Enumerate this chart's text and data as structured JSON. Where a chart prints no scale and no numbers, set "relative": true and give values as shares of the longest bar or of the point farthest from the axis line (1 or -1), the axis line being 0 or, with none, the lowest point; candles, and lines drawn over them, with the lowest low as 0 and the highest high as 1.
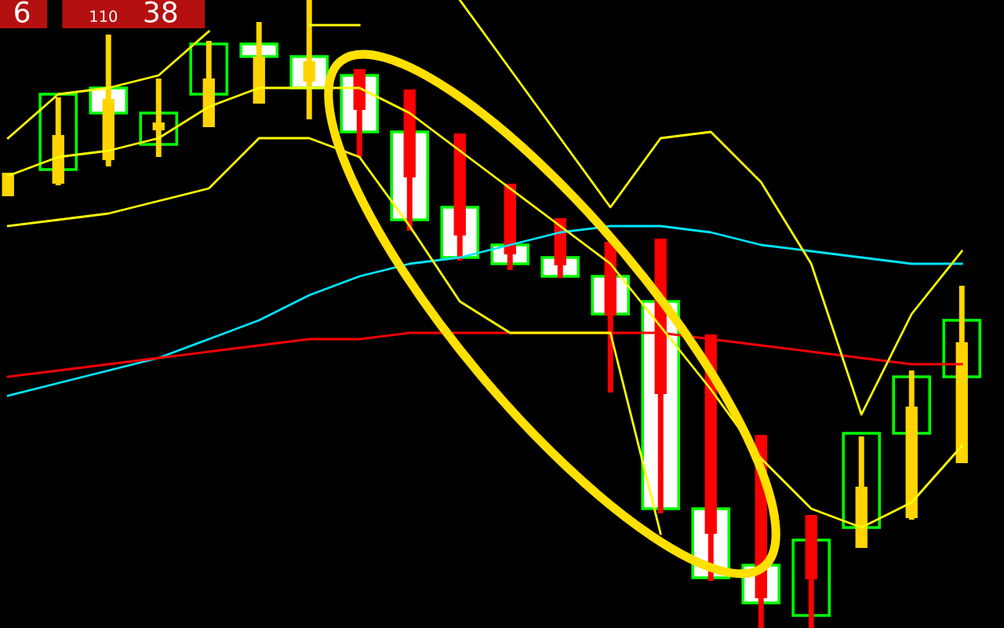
{
  "chart_data": {
    "type": "candlestick",
    "relative": true,
    "annotations": [
      "6",
      "110",
      "38"
    ],
    "categories": [
      null,
      null,
      null,
      null,
      null,
      null,
      null,
      null,
      null,
      null,
      null,
      null,
      null,
      null,
      null,
      null,
      null,
      null,
      null,
      null
    ],
    "ohlc": [
      [
        0.6875,
        0.725,
        0.6875,
        0.725
      ],
      [
        0.7075,
        0.845,
        0.705,
        0.785
      ],
      [
        0.745,
        0.945,
        0.735,
        0.8425
      ],
      [
        0.7925,
        0.875,
        0.75,
        0.805
      ],
      [
        0.7975,
        0.935,
        0.7975,
        0.875
      ],
      [
        0.835,
        0.965,
        0.835,
        0.91
      ],
      [
        0.87,
        1.0,
        0.81,
        0.9025
      ],
      [
        0.89,
        0.89,
        0.75,
        0.825
      ],
      [
        0.8575,
        0.8575,
        0.6325,
        0.7175
      ],
      [
        0.7875,
        0.7875,
        0.585,
        0.625
      ],
      [
        0.7075,
        0.7075,
        0.57,
        0.595
      ],
      [
        0.6525,
        0.6525,
        0.5575,
        0.5775
      ],
      [
        0.615,
        0.615,
        0.375,
        0.4975
      ],
      [
        0.62,
        0.62,
        0.1825,
        0.3725
      ],
      [
        0.4675,
        0.4675,
        0.075,
        0.15
      ],
      [
        0.3075,
        0.3075,
        0.0,
        0.0475
      ],
      [
        0.18,
        0.18,
        0.0,
        0.0775
      ],
      [
        0.1275,
        0.305,
        0.1275,
        0.225
      ],
      [
        0.175,
        0.41,
        0.1725,
        0.3525
      ],
      [
        0.2625,
        0.545,
        0.2625,
        0.455
      ]
    ],
    "colors": [
      "#ffd400",
      "#ffd400",
      "#ffd400",
      "#ffd400",
      "#ffd400",
      "#ffd400",
      "#ffd400",
      "#ff0000",
      "#ff0000",
      "#ff0000",
      "#ff0000",
      "#ff0000",
      "#ff0000",
      "#ff0000",
      "#ff0000",
      "#ff0000",
      "#ff0000",
      "#ffd400",
      "#ffd400",
      "#ffd400"
    ],
    "series": [
      {
        "type": "bar",
        "color": "#00ff00",
        "base": [
          null,
          0.73,
          0.82,
          0.77,
          0.85,
          0.91,
          0.86,
          0.79,
          0.65,
          0.59,
          0.58,
          0.56,
          0.5,
          0.19,
          0.08,
          0.04,
          0.02,
          0.16,
          0.31,
          0.4
        ],
        "values": [
          null,
          0.12,
          0.04,
          0.05,
          0.08,
          0.02,
          0.05,
          0.09,
          0.14,
          0.08,
          0.03,
          0.03,
          0.06,
          0.33,
          0.11,
          0.06,
          0.12,
          0.15,
          0.09,
          0.09
        ],
        "colors": [
          null,
          "#000000",
          "#ffffff",
          "#000000",
          "#000000",
          "#ffffff",
          "#ffffff",
          "#ffffff",
          "#ffffff",
          "#ffffff",
          "#ffffff",
          "#ffffff",
          "#ffffff",
          "#ffffff",
          "#ffffff",
          "#ffffff",
          "#000000",
          "#000000",
          "#000000",
          "#000000"
        ]
      },
      {
        "type": "line",
        "color": "#00e5ff",
        "values": [
          0.37,
          0.39,
          0.41,
          0.43,
          0.46,
          0.49,
          0.53,
          0.56,
          0.58,
          0.59,
          0.61,
          0.63,
          0.64,
          0.64,
          0.63,
          0.61,
          0.6,
          0.59,
          0.58,
          0.58
        ]
      },
      {
        "type": "line",
        "color": "#ff0000",
        "values": [
          0.4,
          0.41,
          0.42,
          0.43,
          0.44,
          0.45,
          0.46,
          0.46,
          0.47,
          0.47,
          0.47,
          0.47,
          0.47,
          0.47,
          0.46,
          0.45,
          0.44,
          0.43,
          0.42,
          0.42
        ]
      },
      {
        "type": "line",
        "color": "#ffff00",
        "values": [
          0.78,
          0.85,
          0.86,
          0.88,
          0.95,
          null,
          0.96,
          0.96,
          null,
          1.0,
          0.89,
          0.78,
          0.67,
          0.78,
          0.79,
          0.71,
          0.58,
          0.34,
          0.5,
          0.6
        ]
      },
      {
        "type": "line",
        "color": "#ffff00",
        "values": [
          0.72,
          0.75,
          0.76,
          0.78,
          0.83,
          0.86,
          0.86,
          0.86,
          0.82,
          0.76,
          0.7,
          0.64,
          0.58,
          0.48,
          0.38,
          0.27,
          0.19,
          0.16,
          0.2,
          0.29
        ]
      },
      {
        "type": "line",
        "color": "#ffff00",
        "values": [
          0.64,
          0.65,
          0.66,
          0.68,
          0.7,
          0.78,
          0.78,
          0.75,
          0.64,
          0.52,
          0.47,
          0.47,
          0.47,
          0.15,
          null,
          null,
          null,
          null,
          null,
          null
        ]
      }
    ]
  }
}
